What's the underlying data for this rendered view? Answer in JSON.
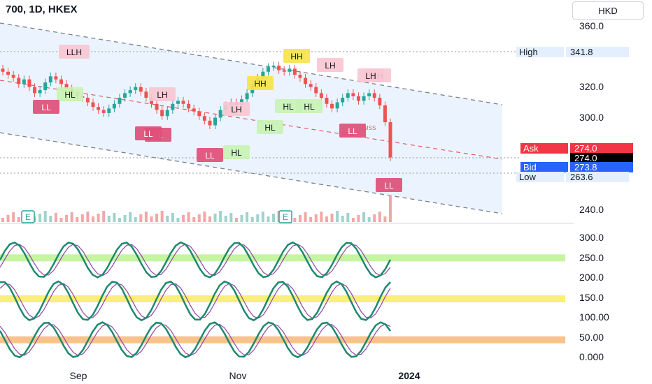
{
  "header": {
    "symbol": "700, 1D, HKEX",
    "currency": "HKD"
  },
  "stats": [
    {
      "label": "High",
      "value": "341.8",
      "bg": "#e3effd",
      "fg": "#131722"
    },
    {
      "label": "Ask",
      "value": "274.0",
      "bg": "#f23645",
      "fg": "#ffffff"
    },
    {
      "label": "",
      "value": "274.0",
      "bg": "#000000",
      "fg": "#ffffff"
    },
    {
      "label": "Bid",
      "value": "273.8",
      "bg": "#2962ff",
      "fg": "#ffffff"
    },
    {
      "label": "Low",
      "value": "263.6",
      "bg": "#e3effd",
      "fg": "#131722"
    }
  ],
  "colors": {
    "up": "#26a69a",
    "down": "#ef5350",
    "fast": "#1b8a6b",
    "slow": "#8e44ad",
    "channel": "#e3effd"
  },
  "chart_data": [
    {
      "type": "candlestick",
      "x_ticks": [
        "Sep",
        "Nov",
        "2024"
      ],
      "y_ticks": [
        "360.0",
        "320.0",
        "300.0",
        "240.0"
      ],
      "ylim": [
        240,
        360
      ],
      "approx_close": [
        330,
        328,
        326,
        322,
        325,
        320,
        316,
        318,
        323,
        327,
        325,
        322,
        319,
        316,
        314,
        313,
        310,
        307,
        305,
        303,
        306,
        309,
        313,
        316,
        318,
        320,
        317,
        313,
        309,
        305,
        301,
        305,
        309,
        311,
        309,
        306,
        304,
        301,
        298,
        295,
        300,
        305,
        308,
        310,
        308,
        312,
        316,
        322,
        326,
        330,
        333,
        334,
        331,
        330,
        332,
        328,
        326,
        322,
        320,
        316,
        313,
        309,
        306,
        310,
        313,
        316,
        314,
        311,
        314,
        316,
        313,
        308,
        297,
        274
      ],
      "swing_labels": [
        "LLH",
        "HL",
        "LL",
        "LH",
        "LL",
        "LH",
        "LL",
        "LH",
        "LL",
        "HL",
        "HH",
        "HL",
        "HH",
        "HL",
        "LH",
        "HL",
        "LH",
        "LL",
        "LL"
      ],
      "events": [
        "E",
        "E"
      ],
      "annotations": [
        "MSS"
      ]
    },
    {
      "type": "line",
      "panel": "oscillator",
      "y_ticks": [
        "300.0",
        "250.0",
        "200.0",
        "150.0",
        "100.00",
        "50.00",
        "0.000"
      ],
      "zones": [
        250,
        150,
        50
      ]
    }
  ]
}
